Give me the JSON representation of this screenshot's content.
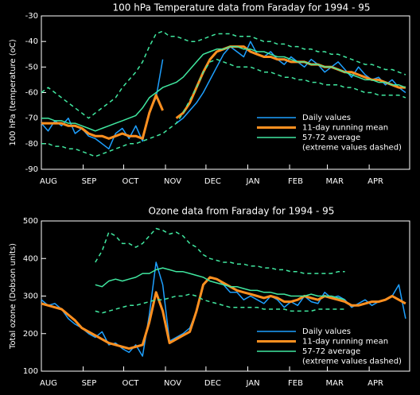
{
  "chart_data": [
    {
      "type": "line",
      "title": "100 hPa Temperature data from Faraday for 1994 - 95",
      "y_label": "100 hPa (temperature (oC)",
      "x": [
        0,
        5,
        10,
        15,
        20,
        25,
        30,
        35,
        40,
        45,
        50,
        55,
        60,
        65,
        70,
        75,
        80,
        85,
        90,
        95,
        100,
        105,
        110,
        115,
        120,
        125,
        130,
        135,
        140,
        145,
        150,
        155,
        160,
        165,
        170,
        175,
        180,
        185,
        190,
        195,
        200,
        205,
        210,
        215,
        220,
        225,
        230,
        235,
        240,
        245,
        250,
        255,
        260,
        265,
        270
      ],
      "xlim": [
        0,
        273
      ],
      "xticks": [
        {
          "value": 0,
          "label": "AUG"
        },
        {
          "value": 31,
          "label": "SEP"
        },
        {
          "value": 61,
          "label": "OCT"
        },
        {
          "value": 92,
          "label": "NOV"
        },
        {
          "value": 122,
          "label": "DEC"
        },
        {
          "value": 153,
          "label": "JAN"
        },
        {
          "value": 184,
          "label": "FEB"
        },
        {
          "value": 212,
          "label": "MAR"
        },
        {
          "value": 243,
          "label": "APR"
        }
      ],
      "ylim": [
        -90,
        -30
      ],
      "yticks": [
        -90,
        -80,
        -70,
        -60,
        -50,
        -40,
        -30
      ],
      "series": [
        {
          "name": "Daily values",
          "color": "#1ea0ff",
          "values": [
            -72,
            -75,
            -71,
            -73,
            -70,
            -76,
            -74,
            -77,
            -78,
            -80,
            -82,
            -76,
            -74,
            -78,
            -73,
            -79,
            -68,
            -62,
            -47,
            null,
            -72,
            -70,
            -67,
            -64,
            -60,
            -55,
            -50,
            -45,
            -42,
            -44,
            -46,
            -40,
            -45,
            -46,
            -44,
            -47,
            -49,
            -46,
            -48,
            -50,
            -47,
            -49,
            -52,
            -50,
            -48,
            -51,
            -54,
            -50,
            -53,
            -55,
            -54,
            -57,
            -55,
            -58,
            -60
          ]
        },
        {
          "name": "11-day running mean",
          "color": "#ff9020",
          "values": [
            -72,
            -72,
            -72,
            -72,
            -73,
            -73,
            -74,
            -76,
            -77,
            -77,
            -78,
            -77,
            -76,
            -77,
            -77,
            -78,
            -68,
            -61,
            -67,
            null,
            -70,
            -68,
            -64,
            -58,
            -52,
            -47,
            -44,
            -43,
            -42,
            -42,
            -42,
            -44,
            -45,
            -46,
            -46,
            -47,
            -47,
            -48,
            -48,
            -48,
            -49,
            -49,
            -50,
            -50,
            -51,
            -52,
            -52,
            -53,
            -54,
            -55,
            -55,
            -56,
            -57,
            -58,
            -58
          ]
        },
        {
          "name": "57-72 average",
          "color": "#40e8a0",
          "extremes_label": "(extreme values dashed)",
          "values": [
            -70,
            -70,
            -71,
            -71,
            -72,
            -72,
            -73,
            -74,
            -75,
            -74,
            -73,
            -72,
            -71,
            -70,
            -69,
            -66,
            -62,
            -60,
            -58,
            -57,
            -56,
            -54,
            -51,
            -48,
            -45,
            -44,
            -43,
            -43,
            -42,
            -42,
            -43,
            -43,
            -44,
            -44,
            -45,
            -46,
            -46,
            -47,
            -48,
            -48,
            -49,
            -49,
            -50,
            -50,
            -51,
            -52,
            -53,
            -54,
            -55,
            -55,
            -56,
            -56,
            -57,
            -57,
            -58
          ],
          "upper": [
            -60,
            -58,
            -60,
            -62,
            -64,
            -66,
            -68,
            -70,
            -68,
            -66,
            -64,
            -62,
            -58,
            -55,
            -52,
            -48,
            -42,
            -37,
            -36,
            -38,
            -38,
            -39,
            -40,
            -40,
            -39,
            -38,
            -37,
            -37,
            -37,
            -38,
            -38,
            -38,
            -39,
            -40,
            -40,
            -41,
            -41,
            -42,
            -42,
            -43,
            -43,
            -44,
            -44,
            -45,
            -45,
            -46,
            -47,
            -48,
            -49,
            -49,
            -50,
            -51,
            -51,
            -52,
            -53
          ],
          "lower": [
            -80,
            -80,
            -81,
            -81,
            -82,
            -82,
            -83,
            -84,
            -85,
            -84,
            -83,
            -82,
            -81,
            -80,
            -80,
            -79,
            -78,
            -77,
            -76,
            -74,
            -72,
            -68,
            -63,
            -58,
            -52,
            -48,
            -47,
            -48,
            -49,
            -50,
            -50,
            -50,
            -51,
            -52,
            -52,
            -53,
            -54,
            -54,
            -55,
            -55,
            -56,
            -56,
            -57,
            -57,
            -57,
            -58,
            -58,
            -59,
            -60,
            -60,
            -61,
            -61,
            -61,
            -61,
            -62
          ]
        }
      ]
    },
    {
      "type": "line",
      "title": "Ozone data from Faraday for 1994 - 95",
      "y_label": "Total ozone (Dobson units)",
      "x": [
        0,
        5,
        10,
        15,
        20,
        25,
        30,
        35,
        40,
        45,
        50,
        55,
        60,
        65,
        70,
        75,
        80,
        85,
        90,
        95,
        100,
        105,
        110,
        115,
        120,
        125,
        130,
        135,
        140,
        145,
        150,
        155,
        160,
        165,
        170,
        175,
        180,
        185,
        190,
        195,
        200,
        205,
        210,
        215,
        220,
        225,
        230,
        235,
        240,
        245,
        250,
        255,
        260,
        265,
        270
      ],
      "xlim": [
        0,
        273
      ],
      "xticks": [
        {
          "value": 0,
          "label": "AUG"
        },
        {
          "value": 31,
          "label": "SEP"
        },
        {
          "value": 61,
          "label": "OCT"
        },
        {
          "value": 92,
          "label": "NOV"
        },
        {
          "value": 122,
          "label": "DEC"
        },
        {
          "value": 153,
          "label": "JAN"
        },
        {
          "value": 184,
          "label": "FEB"
        },
        {
          "value": 212,
          "label": "MAR"
        },
        {
          "value": 243,
          "label": "APR"
        }
      ],
      "ylim": [
        100,
        500
      ],
      "yticks": [
        100,
        200,
        300,
        400,
        500
      ],
      "series": [
        {
          "name": "Daily values",
          "color": "#1ea0ff",
          "values": [
            290,
            275,
            280,
            265,
            240,
            225,
            215,
            200,
            190,
            205,
            170,
            175,
            160,
            150,
            170,
            140,
            250,
            390,
            330,
            180,
            190,
            200,
            215,
            260,
            330,
            350,
            345,
            330,
            310,
            310,
            290,
            300,
            290,
            280,
            300,
            290,
            270,
            285,
            275,
            300,
            285,
            280,
            310,
            295,
            300,
            290,
            270,
            280,
            290,
            275,
            285,
            290,
            300,
            330,
            240
          ]
        },
        {
          "name": "11-day running mean",
          "color": "#ff9020",
          "values": [
            280,
            275,
            270,
            265,
            250,
            235,
            215,
            205,
            195,
            185,
            175,
            170,
            165,
            160,
            165,
            170,
            230,
            310,
            260,
            175,
            185,
            195,
            205,
            260,
            330,
            350,
            345,
            335,
            325,
            315,
            310,
            305,
            300,
            295,
            300,
            295,
            285,
            285,
            290,
            300,
            295,
            290,
            300,
            295,
            290,
            285,
            275,
            275,
            280,
            285,
            285,
            290,
            300,
            290,
            280
          ]
        },
        {
          "name": "57-72 average",
          "color": "#40e8a0",
          "extremes_label": "(extreme values dashed)",
          "values": [
            null,
            null,
            null,
            null,
            null,
            null,
            null,
            null,
            330,
            325,
            340,
            345,
            340,
            345,
            350,
            360,
            360,
            370,
            375,
            370,
            365,
            365,
            360,
            355,
            350,
            340,
            335,
            330,
            325,
            325,
            320,
            315,
            315,
            310,
            310,
            305,
            305,
            300,
            300,
            300,
            305,
            300,
            300,
            300,
            295,
            290,
            null,
            null,
            null,
            null,
            null,
            null,
            null,
            null,
            null
          ],
          "upper": [
            null,
            null,
            null,
            null,
            null,
            null,
            null,
            null,
            390,
            420,
            470,
            460,
            440,
            440,
            430,
            440,
            460,
            480,
            475,
            465,
            470,
            460,
            440,
            430,
            410,
            400,
            395,
            390,
            390,
            385,
            385,
            380,
            380,
            375,
            375,
            370,
            370,
            365,
            365,
            360,
            360,
            360,
            360,
            360,
            365,
            365,
            null,
            null,
            null,
            null,
            null,
            null,
            null,
            null,
            null
          ],
          "lower": [
            null,
            null,
            null,
            null,
            null,
            null,
            null,
            null,
            260,
            255,
            260,
            265,
            270,
            275,
            275,
            280,
            285,
            290,
            290,
            295,
            300,
            300,
            305,
            300,
            290,
            285,
            280,
            275,
            270,
            270,
            270,
            270,
            270,
            265,
            265,
            265,
            265,
            260,
            260,
            260,
            260,
            265,
            265,
            265,
            265,
            265,
            null,
            null,
            null,
            null,
            null,
            null,
            null,
            null,
            null
          ]
        }
      ]
    }
  ]
}
